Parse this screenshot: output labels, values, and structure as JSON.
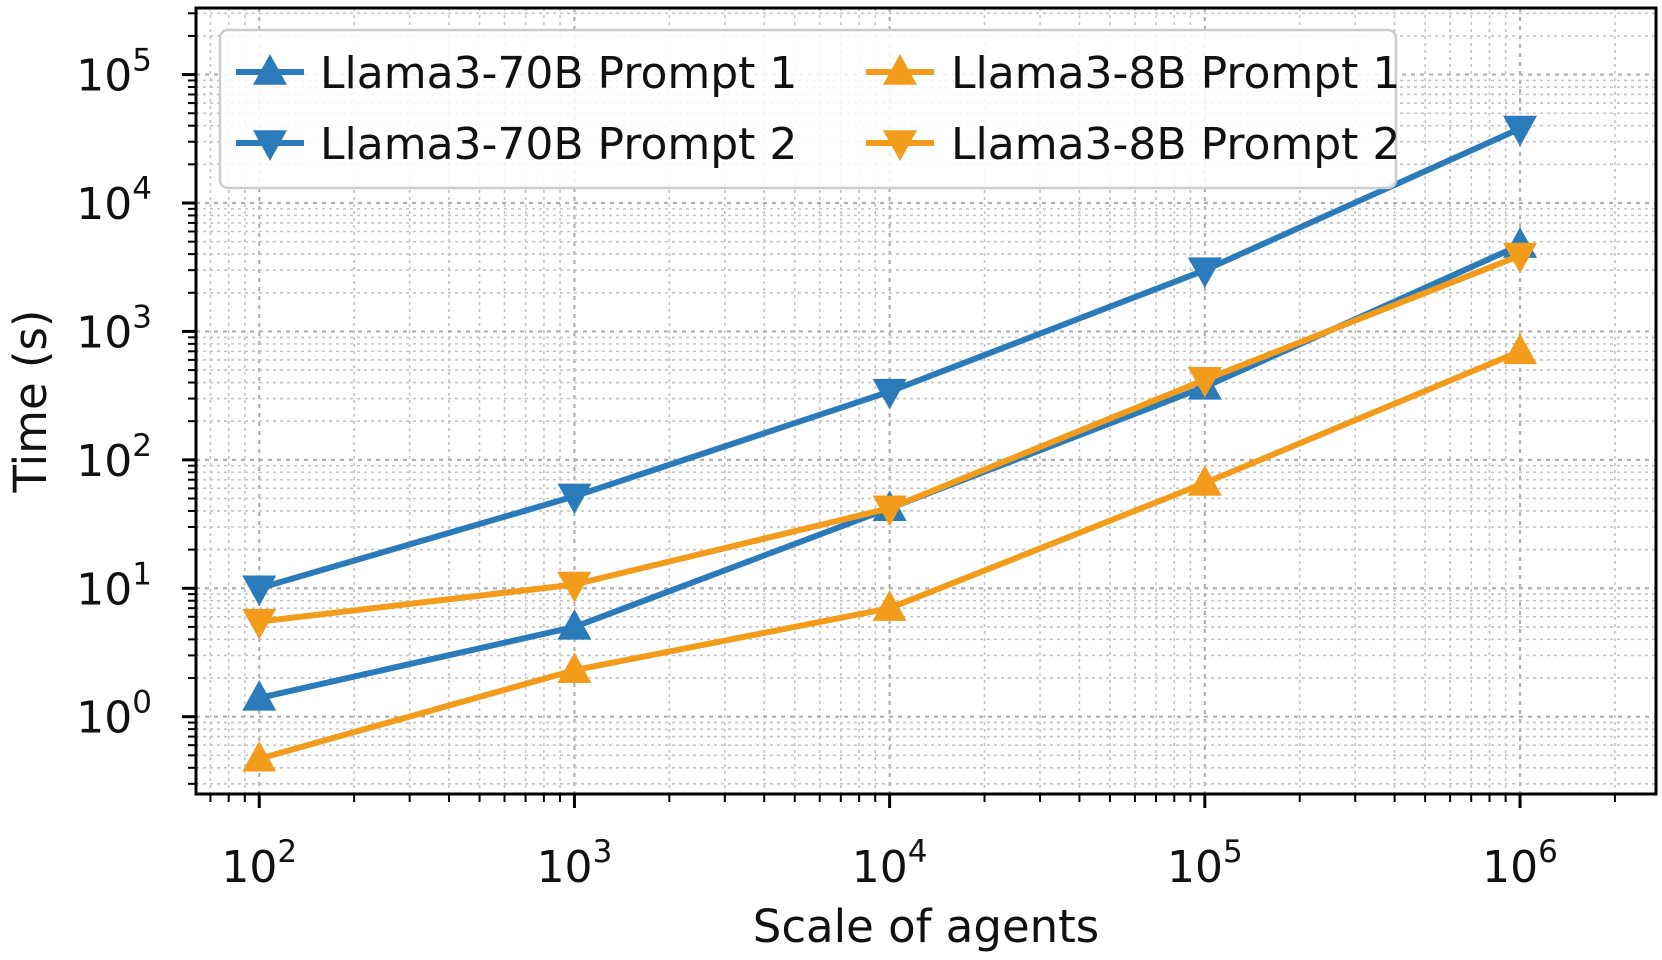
{
  "chart_data": {
    "type": "line",
    "title": "",
    "xlabel": "Scale of agents",
    "ylabel": "Time (s)",
    "xscale": "log",
    "yscale": "log",
    "x": [
      100,
      1000,
      10000,
      100000,
      1000000
    ],
    "xlim": [
      63,
      2700000
    ],
    "ylim": [
      0.25,
      330000
    ],
    "x_ticks": [
      {
        "value": 100,
        "base": "10",
        "exp": "2"
      },
      {
        "value": 1000,
        "base": "10",
        "exp": "3"
      },
      {
        "value": 10000,
        "base": "10",
        "exp": "4"
      },
      {
        "value": 100000,
        "base": "10",
        "exp": "5"
      },
      {
        "value": 1000000,
        "base": "10",
        "exp": "6"
      }
    ],
    "y_ticks": [
      {
        "value": 1,
        "base": "10",
        "exp": "0"
      },
      {
        "value": 10,
        "base": "10",
        "exp": "1"
      },
      {
        "value": 100,
        "base": "10",
        "exp": "2"
      },
      {
        "value": 1000,
        "base": "10",
        "exp": "3"
      },
      {
        "value": 10000,
        "base": "10",
        "exp": "4"
      },
      {
        "value": 100000,
        "base": "10",
        "exp": "5"
      }
    ],
    "grid": "major and minor, dotted",
    "legend_position": "top-left",
    "series": [
      {
        "name": "Llama3-70B Prompt 1",
        "color": "#2b7bba",
        "marker": "triangle-up",
        "values": [
          1.4,
          5.0,
          42,
          370,
          4700
        ]
      },
      {
        "name": "Llama3-70B Prompt 2",
        "color": "#2b7bba",
        "marker": "triangle-down",
        "values": [
          10,
          52,
          340,
          3000,
          38000
        ]
      },
      {
        "name": "Llama3-8B Prompt 1",
        "color": "#f39c1c",
        "marker": "triangle-up",
        "values": [
          0.47,
          2.3,
          7.0,
          66,
          700
        ]
      },
      {
        "name": "Llama3-8B Prompt 2",
        "color": "#f39c1c",
        "marker": "triangle-down",
        "values": [
          5.5,
          10.7,
          42,
          420,
          3900
        ]
      }
    ]
  }
}
